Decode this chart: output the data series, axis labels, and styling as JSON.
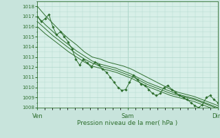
{
  "title": "",
  "xlabel": "Pression niveau de la mer( hPa )",
  "ylim": [
    1008,
    1018.5
  ],
  "yticks": [
    1008,
    1009,
    1010,
    1011,
    1012,
    1013,
    1014,
    1015,
    1016,
    1017,
    1018
  ],
  "xtick_labels": [
    "Ven",
    "Sam",
    "Dim"
  ],
  "xtick_positions": [
    0.0,
    0.5,
    1.0
  ],
  "bg_color": "#d8efe8",
  "grid_color": "#b0d8cc",
  "line_color": "#2d6e2d",
  "fig_bg": "#c8e4dc",
  "xlim": [
    0.0,
    1.0
  ],
  "series_smooth": [
    [
      1018.0,
      1017.1,
      1016.3,
      1015.5,
      1014.8,
      1014.2,
      1013.5,
      1013.0,
      1012.8,
      1012.5,
      1012.3,
      1012.1,
      1011.8,
      1011.4,
      1011.0,
      1010.6,
      1010.2,
      1009.8,
      1009.5,
      1009.3,
      1009.1,
      1008.8,
      1008.5,
      1008.2
    ],
    [
      1017.0,
      1016.2,
      1015.5,
      1014.8,
      1014.2,
      1013.6,
      1013.1,
      1012.6,
      1012.3,
      1012.1,
      1011.9,
      1011.6,
      1011.3,
      1010.9,
      1010.5,
      1010.2,
      1009.9,
      1009.6,
      1009.3,
      1009.1,
      1008.9,
      1008.6,
      1008.3,
      1008.0
    ],
    [
      1016.5,
      1015.8,
      1015.1,
      1014.5,
      1013.9,
      1013.3,
      1012.8,
      1012.4,
      1012.1,
      1011.9,
      1011.7,
      1011.4,
      1011.1,
      1010.7,
      1010.3,
      1010.0,
      1009.7,
      1009.4,
      1009.2,
      1009.0,
      1008.8,
      1008.5,
      1008.2,
      1007.9
    ],
    [
      1016.0,
      1015.3,
      1014.7,
      1014.1,
      1013.5,
      1013.0,
      1012.5,
      1012.1,
      1011.9,
      1011.7,
      1011.5,
      1011.2,
      1010.9,
      1010.5,
      1010.1,
      1009.8,
      1009.5,
      1009.2,
      1009.0,
      1008.8,
      1008.6,
      1008.3,
      1008.0,
      1007.8
    ]
  ],
  "series_noisy": [
    1017.0,
    1016.5,
    1016.8,
    1017.2,
    1016.0,
    1015.2,
    1015.5,
    1015.0,
    1014.5,
    1013.8,
    1012.8,
    1012.2,
    1012.8,
    1012.4,
    1012.0,
    1012.5,
    1012.2,
    1011.8,
    1011.5,
    1011.0,
    1010.5,
    1010.0,
    1009.7,
    1009.8,
    1010.5,
    1011.2,
    1010.8,
    1010.3,
    1010.2,
    1009.8,
    1009.4,
    1009.2,
    1009.4,
    1010.0,
    1010.2,
    1009.8,
    1009.5,
    1009.2,
    1009.0,
    1008.8,
    1008.5,
    1008.2,
    1008.0,
    1008.3,
    1009.0,
    1009.2,
    1008.8,
    1008.5
  ]
}
